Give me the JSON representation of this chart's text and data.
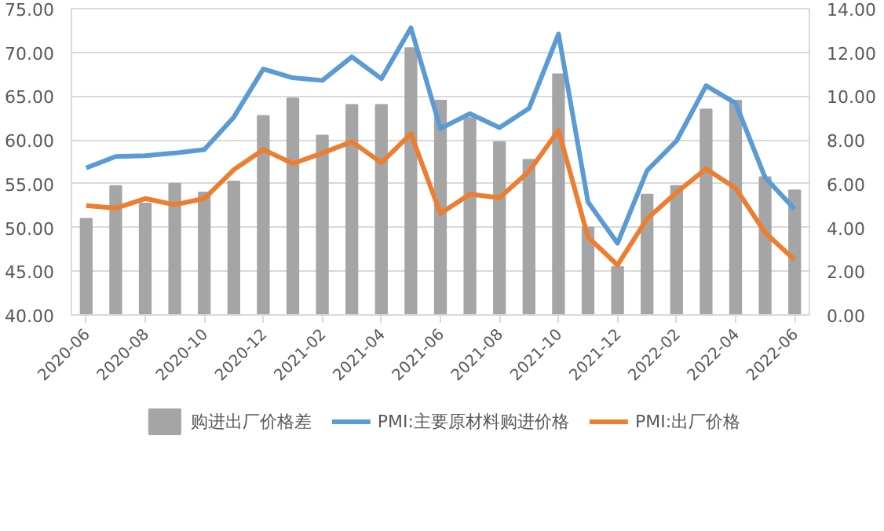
{
  "chart_data": {
    "type": "bar",
    "categories": [
      "2020-06",
      null,
      "2020-08",
      null,
      "2020-10",
      null,
      "2020-12",
      null,
      "2021-02",
      null,
      "2021-04",
      null,
      "2021-06",
      null,
      "2021-08",
      null,
      "2021-10",
      null,
      "2021-12",
      null,
      "2022-02",
      null,
      "2022-04",
      null,
      "2022-06"
    ],
    "series": [
      {
        "name": "购进出厂价格差",
        "axis": "y2",
        "color": "#a5a5a5",
        "values": [
          4.4,
          5.9,
          5.1,
          6.0,
          5.6,
          6.1,
          9.1,
          9.9,
          8.2,
          9.6,
          9.6,
          12.2,
          9.8,
          9.0,
          7.9,
          7.1,
          11.0,
          4.0,
          2.2,
          5.5,
          5.9,
          9.4,
          9.8,
          6.3,
          5.7
        ]
      },
      {
        "name": "PMI:主要原材料购进价格",
        "type": "line",
        "color": "#5b9bd5",
        "values": [
          56.8,
          58.1,
          58.2,
          58.5,
          58.9,
          62.6,
          68.1,
          67.1,
          66.8,
          69.5,
          67.0,
          72.8,
          61.3,
          63.0,
          61.4,
          63.6,
          72.1,
          52.9,
          48.2,
          56.5,
          59.9,
          66.2,
          64.2,
          55.7,
          52.1
        ]
      },
      {
        "name": "PMI:出厂价格",
        "type": "line",
        "color": "#ed7d31",
        "values": [
          52.5,
          52.2,
          53.3,
          52.6,
          53.3,
          56.6,
          58.9,
          57.3,
          58.5,
          59.8,
          57.4,
          60.7,
          51.6,
          53.8,
          53.4,
          56.4,
          61.1,
          48.9,
          45.7,
          51.0,
          54.0,
          56.7,
          54.5,
          49.4,
          46.3
        ]
      }
    ],
    "ylim": [
      40,
      75
    ],
    "yticks": [
      {
        "value": 40,
        "label": "40.00"
      },
      {
        "value": 45,
        "label": "45.00"
      },
      {
        "value": 50,
        "label": "50.00"
      },
      {
        "value": 55,
        "label": "55.00"
      },
      {
        "value": 60,
        "label": "60.00"
      },
      {
        "value": 65,
        "label": "65.00"
      },
      {
        "value": 70,
        "label": "70.00"
      },
      {
        "value": 75,
        "label": "75.00"
      }
    ],
    "y2lim": [
      0,
      14
    ],
    "y2ticks": [
      {
        "value": 0,
        "label": "0.00"
      },
      {
        "value": 2,
        "label": "2.00"
      },
      {
        "value": 4,
        "label": "4.00"
      },
      {
        "value": 6,
        "label": "6.00"
      },
      {
        "value": 8,
        "label": "8.00"
      },
      {
        "value": 10,
        "label": "10.00"
      },
      {
        "value": 12,
        "label": "12.00"
      },
      {
        "value": 14,
        "label": "14.00"
      }
    ],
    "grid": "y",
    "legend": "bottom"
  }
}
